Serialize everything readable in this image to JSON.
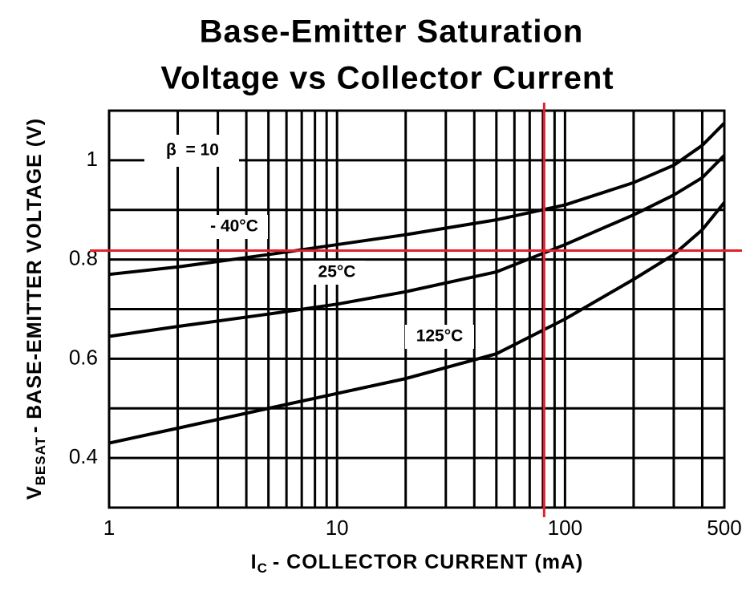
{
  "chart_data": {
    "type": "line",
    "title": [
      "Base-Emitter Saturation",
      "Voltage vs Collector Current"
    ],
    "xlabel": {
      "main": "I",
      "sub": "C",
      "rest": "- COLLECTOR CURRENT  (mA)"
    },
    "ylabel": {
      "main": "V",
      "sub": "BESAT",
      "rest": "- BASE-EMITTER VOLTAGE (V)"
    },
    "annotation": "β  = 10",
    "x": [
      1,
      2,
      5,
      10,
      20,
      50,
      100,
      200,
      300,
      400,
      500
    ],
    "series": [
      {
        "name": "- 40°C",
        "color": "#000000",
        "values": [
          0.77,
          0.785,
          0.81,
          0.83,
          0.85,
          0.88,
          0.91,
          0.955,
          0.99,
          1.03,
          1.075
        ]
      },
      {
        "name": "25°C",
        "color": "#000000",
        "values": [
          0.645,
          0.665,
          0.69,
          0.71,
          0.735,
          0.775,
          0.83,
          0.89,
          0.93,
          0.965,
          1.01
        ]
      },
      {
        "name": "125°C",
        "color": "#000000",
        "values": [
          0.43,
          0.46,
          0.5,
          0.53,
          0.56,
          0.61,
          0.68,
          0.76,
          0.81,
          0.86,
          0.915
        ]
      }
    ],
    "xscale": "log",
    "xlim": [
      1,
      500
    ],
    "xticks": [
      1,
      10,
      100,
      500
    ],
    "xgrid": [
      2,
      3,
      4,
      5,
      6,
      7,
      8,
      9,
      20,
      30,
      40,
      50,
      60,
      70,
      80,
      90,
      200,
      300,
      400
    ],
    "ylim": [
      0.3,
      1.1
    ],
    "yticks": [
      0.4,
      0.6,
      0.8,
      1
    ],
    "ygrid": [
      0.5,
      0.7,
      0.9
    ],
    "grid": true,
    "crosshair": {
      "x": 81,
      "y": 0.818,
      "color": "#e3202e"
    }
  }
}
